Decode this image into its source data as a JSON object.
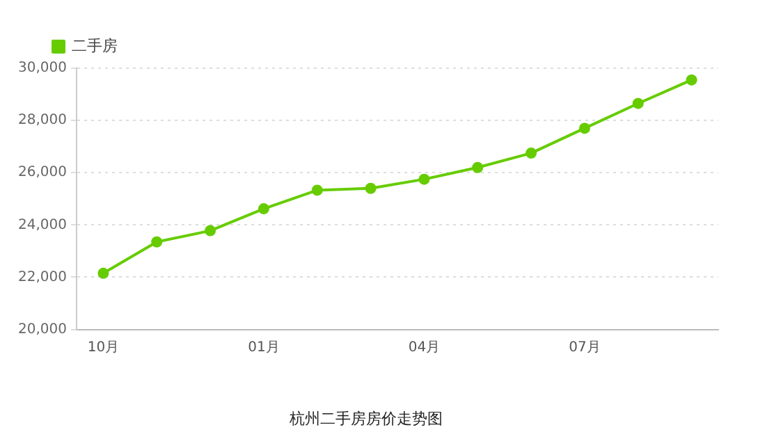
{
  "chart_data": {
    "type": "line",
    "title": "杭州二手房房价走势图",
    "categories": [
      "10月",
      null,
      null,
      "01月",
      null,
      null,
      "04月",
      null,
      null,
      "07月",
      null,
      null
    ],
    "series": [
      {
        "name": "二手房",
        "color": "#66cc00",
        "values": [
          22150,
          23350,
          23780,
          24620,
          25330,
          25400,
          25750,
          26200,
          26750,
          27700,
          28650,
          29550
        ]
      }
    ],
    "ylim": [
      20000,
      30000
    ],
    "yticks": [
      {
        "value": 20000,
        "label": "20,000"
      },
      {
        "value": 22000,
        "label": "22,000"
      },
      {
        "value": 24000,
        "label": "24,000"
      },
      {
        "value": 26000,
        "label": "26,000"
      },
      {
        "value": 28000,
        "label": "28,000"
      },
      {
        "value": 30000,
        "label": "30,000"
      }
    ],
    "grid": "y",
    "legend": "top left",
    "marker": "circle",
    "line_style": "solid"
  }
}
